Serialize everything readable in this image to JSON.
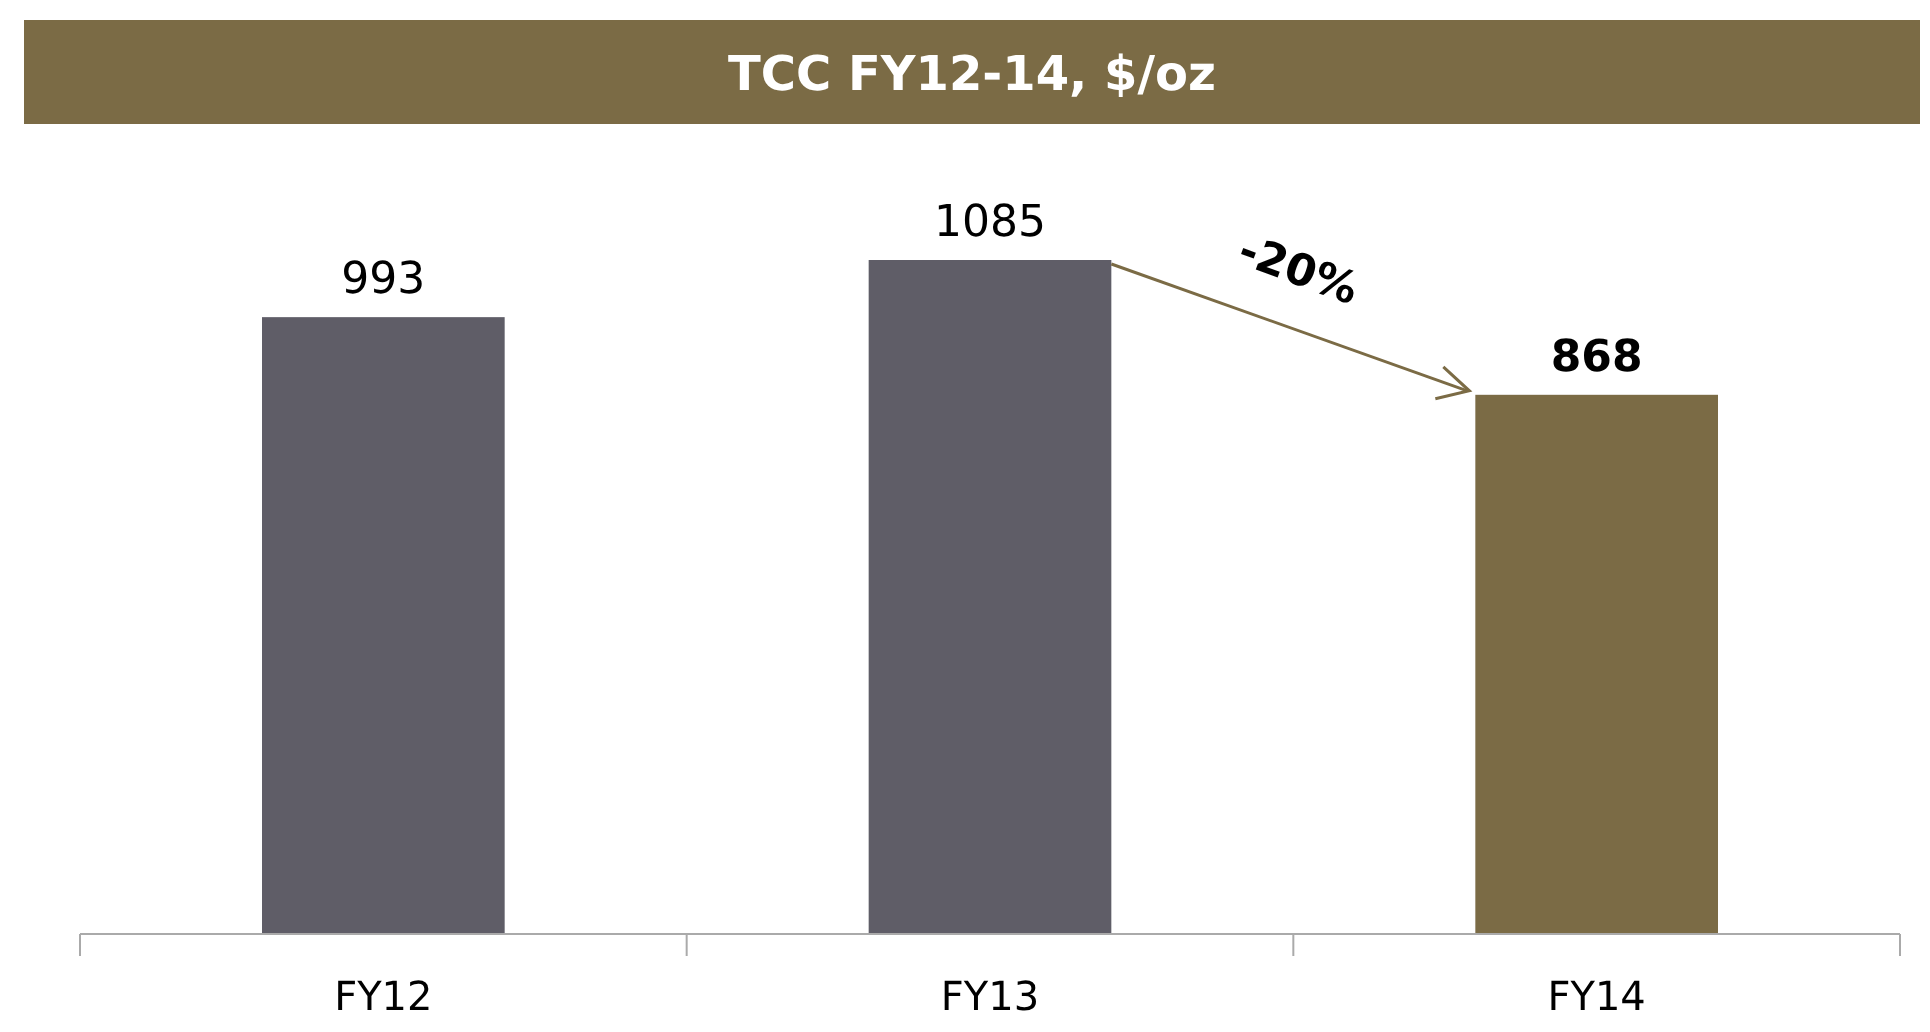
{
  "chart_data": {
    "type": "bar",
    "title": "TCC FY12-14, $/oz",
    "categories": [
      "FY12",
      "FY13",
      "FY14"
    ],
    "values": [
      993,
      1085,
      868
    ],
    "colors": [
      "#5f5d67",
      "#5f5d67",
      "#7b6b45"
    ],
    "data_labels": true,
    "annotations": [
      "-20%"
    ]
  }
}
